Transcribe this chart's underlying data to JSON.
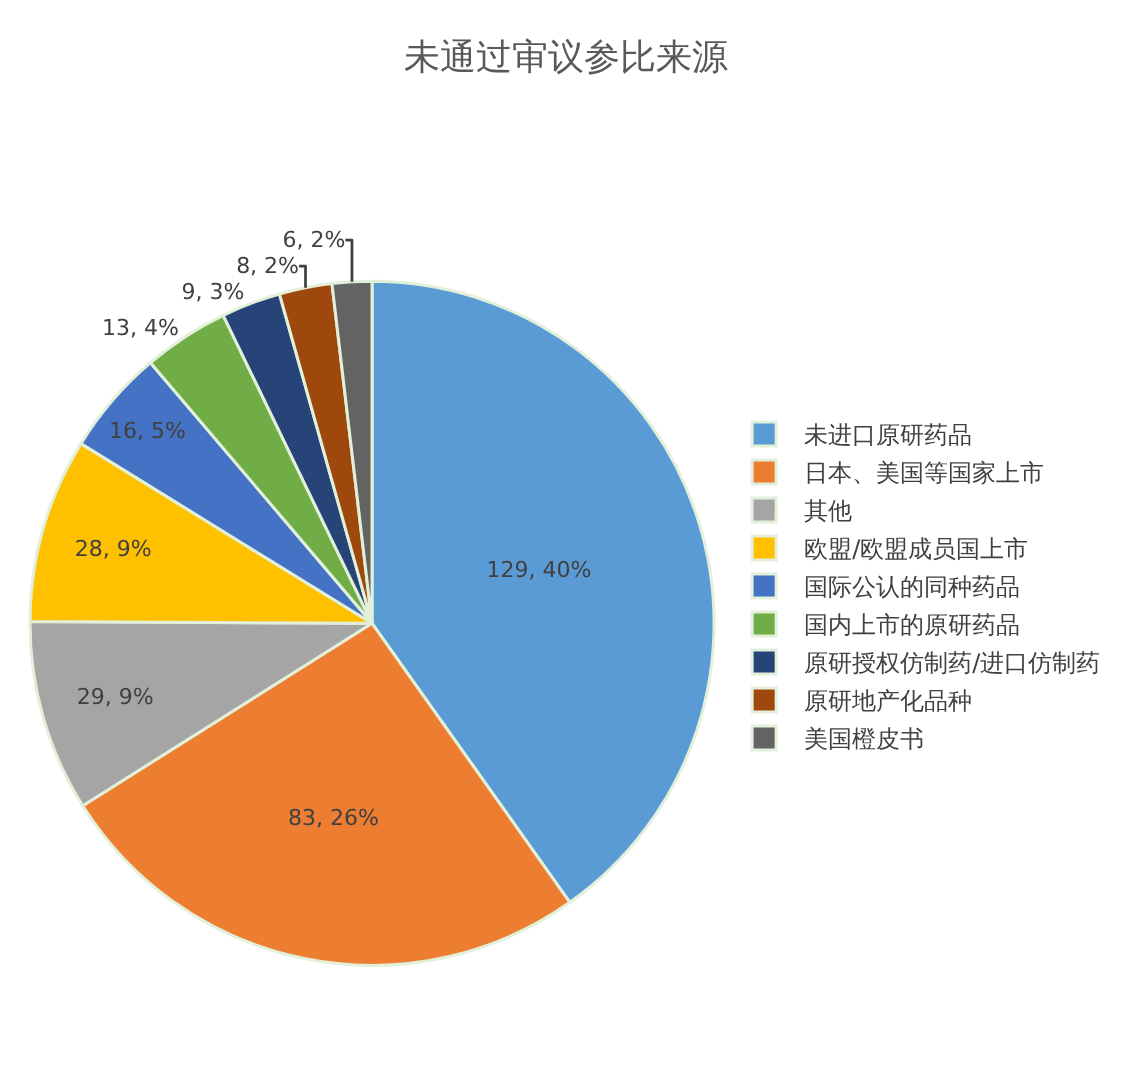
{
  "chart_data": {
    "type": "pie",
    "title": "未通过审议参比来源",
    "categories": [
      "未进口原研药品",
      "日本、美国等国家上市",
      "其他",
      "欧盟/欧盟成员国上市",
      "国际公认的同种药品",
      "国内上市的原研药品",
      "原研授权仿制药/进口仿制药",
      "原研地产化品种",
      "美国橙皮书"
    ],
    "values": [
      129,
      83,
      29,
      28,
      16,
      13,
      9,
      8,
      6
    ],
    "colors": [
      "#5b9bd5",
      "#ed7d31",
      "#a5a5a5",
      "#ffc000",
      "#4472c4",
      "#70ad47",
      "#264478",
      "#9e480e",
      "#636363"
    ],
    "value_labels": [
      "129, 40%",
      "83, 26%",
      "29, 9%",
      "28, 9%",
      "16, 5%",
      "13, 4%",
      "9, 3%",
      "8, 2%",
      "6, 2%"
    ],
    "legend": "right"
  }
}
